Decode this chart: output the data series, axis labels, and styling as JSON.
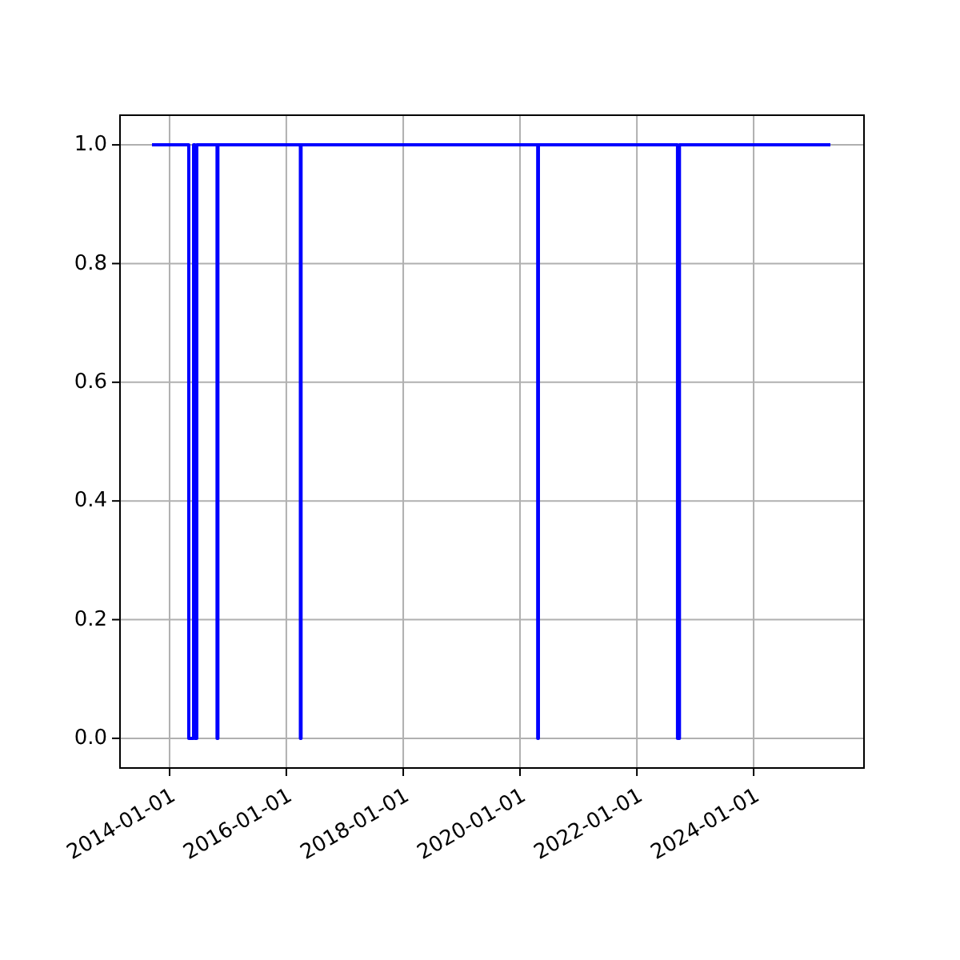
{
  "chart_data": {
    "type": "step",
    "x": [
      "2013-09-13",
      "2014-05-01",
      "2014-05-31",
      "2014-06-08",
      "2014-06-20",
      "2014-10-25",
      "2014-10-30",
      "2016-03-29",
      "2016-04-02",
      "2020-04-21",
      "2020-04-25",
      "2022-09-12",
      "2022-09-24",
      "2025-04-25"
    ],
    "series": [
      {
        "color": "#0000ff",
        "values": [
          1,
          0,
          1,
          0,
          1,
          0,
          1,
          0,
          1,
          0,
          1,
          0,
          1,
          1
        ]
      }
    ],
    "xlim": [
      "2013-02-25",
      "2025-11-21"
    ],
    "ylim": [
      -0.05,
      1.05
    ],
    "xticks": [
      "2014-01-01",
      "2016-01-01",
      "2018-01-01",
      "2020-01-01",
      "2022-01-01",
      "2024-01-01"
    ],
    "yticks": [
      {
        "value": 0,
        "label": "0.0"
      },
      {
        "value": 0.2,
        "label": "0.2"
      },
      {
        "value": 0.4,
        "label": "0.4"
      },
      {
        "value": 0.6,
        "label": "0.6"
      },
      {
        "value": 0.8,
        "label": "0.8"
      },
      {
        "value": 1,
        "label": "1.0"
      }
    ],
    "grid": true
  }
}
